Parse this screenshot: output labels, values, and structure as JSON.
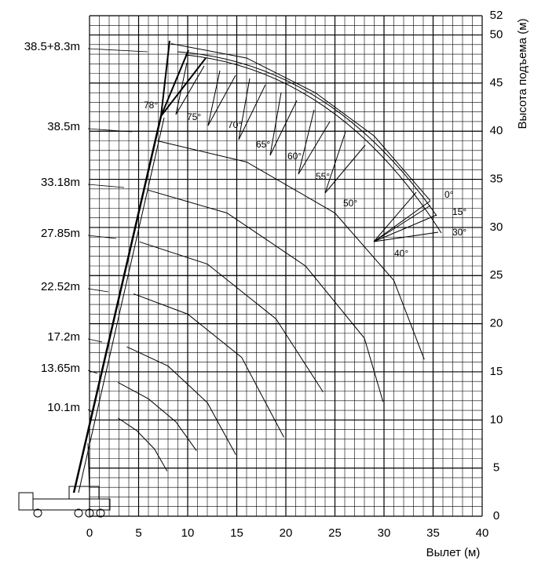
{
  "chart_data": {
    "type": "line",
    "x_label": "Вылет (м)",
    "y_label": "Высота подъема (м)",
    "xlim": [
      0,
      40
    ],
    "xticks": [
      0,
      5,
      10,
      15,
      20,
      25,
      30,
      35,
      40
    ],
    "ylim": [
      0,
      52
    ],
    "yticks": [
      0,
      5,
      10,
      15,
      20,
      25,
      30,
      35,
      40,
      45,
      50,
      52
    ],
    "grid": true,
    "series": [
      {
        "name": "38.5+8.3m",
        "color": "#000000",
        "x": [
          8.3,
          16,
          23,
          29,
          34.7
        ],
        "values": [
          49.1,
          47.6,
          44.0,
          39.5,
          32.8
        ]
      },
      {
        "name": "38.5m",
        "color": "#000000",
        "x": [
          6.9,
          16,
          25,
          31,
          34.1
        ],
        "values": [
          39.0,
          36.8,
          31.5,
          24.5,
          16.3
        ]
      },
      {
        "name": "33.18m",
        "color": "#000000",
        "x": [
          5.9,
          14,
          22,
          28,
          29.9
        ],
        "values": [
          33.9,
          31.5,
          26.0,
          18.5,
          11.9
        ]
      },
      {
        "name": "27.85m",
        "color": "#000000",
        "x": [
          5.1,
          12,
          19,
          23.8
        ],
        "values": [
          28.5,
          26.2,
          20.5,
          12.9
        ]
      },
      {
        "name": "22.52m",
        "color": "#000000",
        "x": [
          4.5,
          10,
          15.5,
          19.8
        ],
        "values": [
          23.1,
          21.0,
          16.5,
          8.2
        ]
      },
      {
        "name": "17.2m",
        "color": "#000000",
        "x": [
          3.8,
          8,
          12,
          14.9
        ],
        "values": [
          17.6,
          15.6,
          11.8,
          6.4
        ]
      },
      {
        "name": "13.65m",
        "color": "#000000",
        "x": [
          2.9,
          6.0,
          8.8,
          10.9
        ],
        "values": [
          13.9,
          12.2,
          9.8,
          6.8
        ]
      },
      {
        "name": "10.1m",
        "color": "#000000",
        "x": [
          2.9,
          4.8,
          6.6,
          7.9
        ],
        "values": [
          10.2,
          8.9,
          7.0,
          4.7
        ]
      }
    ],
    "jib_angles": [
      "78°",
      "75°",
      "70°",
      "65°",
      "60°",
      "55°",
      "50°",
      "40°",
      "30°",
      "15°",
      "0°"
    ]
  }
}
